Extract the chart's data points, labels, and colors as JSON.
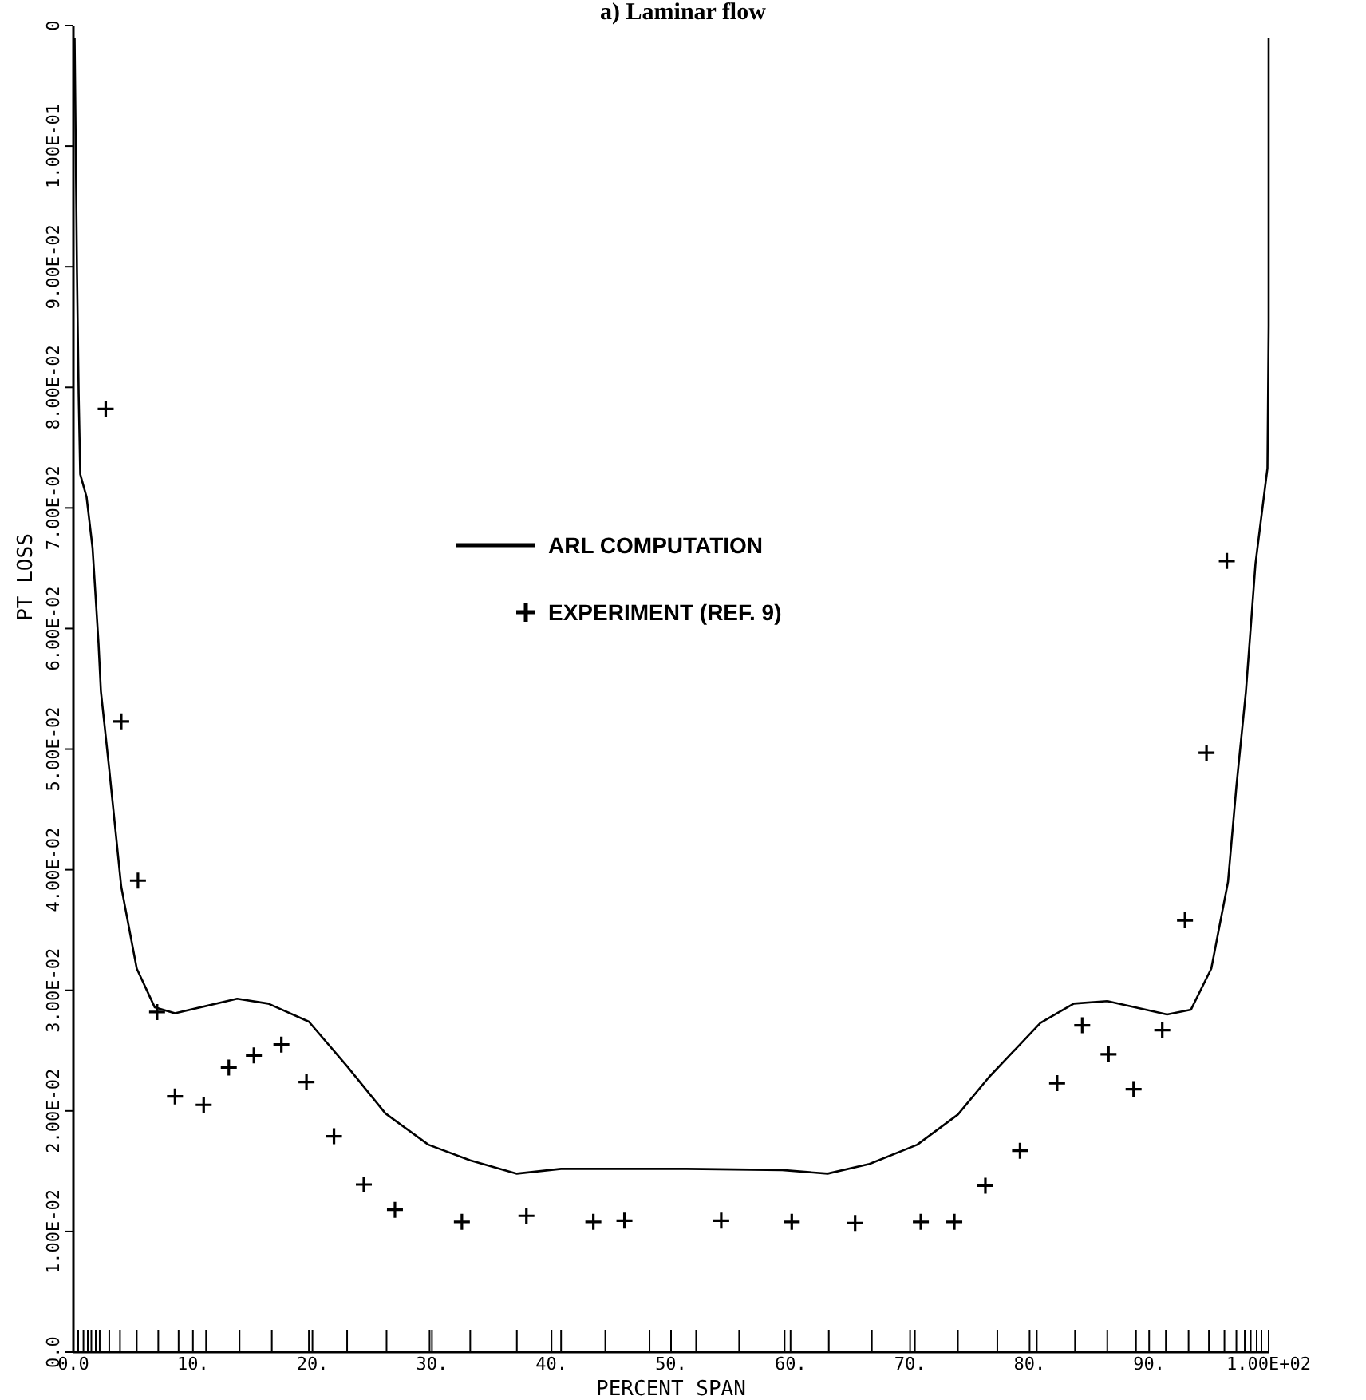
{
  "chart_data": {
    "type": "line",
    "title": "a)   Laminar flow",
    "xlabel": "PERCENT SPAN",
    "ylabel": "PT LOSS",
    "xlim": [
      0,
      100
    ],
    "ylim": [
      0,
      0.11
    ],
    "xticks": [
      {
        "value": 0,
        "label": "0.0"
      },
      {
        "value": 0.4,
        "label": null
      },
      {
        "value": 0.84,
        "label": null
      },
      {
        "value": 1.2,
        "label": null
      },
      {
        "value": 1.5,
        "label": null
      },
      {
        "value": 1.87,
        "label": null
      },
      {
        "value": 2.2,
        "label": null
      },
      {
        "value": 3.0,
        "label": null
      },
      {
        "value": 3.9,
        "label": null
      },
      {
        "value": 5.3,
        "label": null
      },
      {
        "value": 7.1,
        "label": null
      },
      {
        "value": 8.8,
        "label": null
      },
      {
        "value": 10,
        "label": "10."
      },
      {
        "value": 11.1,
        "label": null
      },
      {
        "value": 13.9,
        "label": null
      },
      {
        "value": 16.6,
        "label": null
      },
      {
        "value": 19.7,
        "label": null
      },
      {
        "value": 20,
        "label": "20."
      },
      {
        "value": 22.9,
        "label": null
      },
      {
        "value": 26.2,
        "label": null
      },
      {
        "value": 29.8,
        "label": null
      },
      {
        "value": 30,
        "label": "30."
      },
      {
        "value": 33.2,
        "label": null
      },
      {
        "value": 37.1,
        "label": null
      },
      {
        "value": 40,
        "label": "40."
      },
      {
        "value": 40.8,
        "label": null
      },
      {
        "value": 44.5,
        "label": null
      },
      {
        "value": 48.2,
        "label": null
      },
      {
        "value": 50,
        "label": "50."
      },
      {
        "value": 52.1,
        "label": null
      },
      {
        "value": 55.7,
        "label": null
      },
      {
        "value": 59.5,
        "label": null
      },
      {
        "value": 60,
        "label": "60."
      },
      {
        "value": 63.2,
        "label": null
      },
      {
        "value": 66.8,
        "label": null
      },
      {
        "value": 70,
        "label": "70."
      },
      {
        "value": 70.4,
        "label": null
      },
      {
        "value": 74.0,
        "label": null
      },
      {
        "value": 77.3,
        "label": null
      },
      {
        "value": 80,
        "label": "80."
      },
      {
        "value": 80.6,
        "label": null
      },
      {
        "value": 83.8,
        "label": null
      },
      {
        "value": 86.5,
        "label": null
      },
      {
        "value": 88.9,
        "label": null
      },
      {
        "value": 90,
        "label": "90."
      },
      {
        "value": 91.4,
        "label": null
      },
      {
        "value": 93.3,
        "label": null
      },
      {
        "value": 95.0,
        "label": null
      },
      {
        "value": 96.3,
        "label": null
      },
      {
        "value": 97.3,
        "label": null
      },
      {
        "value": 98.0,
        "label": null
      },
      {
        "value": 98.5,
        "label": null
      },
      {
        "value": 99.0,
        "label": null
      },
      {
        "value": 99.4,
        "label": null
      },
      {
        "value": 100,
        "label": "1.00E+02"
      }
    ],
    "yticks": [
      {
        "value": 0,
        "label": "0.0"
      },
      {
        "value": 0.01,
        "label": "1.00E-02"
      },
      {
        "value": 0.02,
        "label": "2.00E-02"
      },
      {
        "value": 0.03,
        "label": "3.00E-02"
      },
      {
        "value": 0.04,
        "label": "4.00E-02"
      },
      {
        "value": 0.05,
        "label": "5.00E-02"
      },
      {
        "value": 0.06,
        "label": "6.00E-02"
      },
      {
        "value": 0.07,
        "label": "7.00E-02"
      },
      {
        "value": 0.08,
        "label": "8.00E-02"
      },
      {
        "value": 0.09,
        "label": "9.00E-02"
      },
      {
        "value": 0.1,
        "label": "1.00E-01"
      },
      {
        "value": 0.11,
        "label": "0"
      }
    ],
    "grid": false,
    "legend": "center",
    "series": [
      {
        "name": "ARL COMPUTATION",
        "color": "#000000",
        "marker": "none",
        "line_style": "solid",
        "x": [
          0.1,
          0.2,
          0.3,
          0.44,
          0.57,
          1.1,
          1.6,
          2.1,
          2.3,
          3.0,
          4.0,
          5.3,
          6.8,
          8.5,
          13.7,
          16.3,
          19.7,
          22.9,
          26.1,
          29.7,
          33.2,
          37.1,
          40.8,
          51.3,
          59.3,
          63.1,
          66.6,
          70.6,
          74.0,
          76.6,
          80.9,
          83.7,
          86.5,
          91.5,
          93.5,
          95.2,
          96.6,
          97.3,
          98.1,
          98.9,
          99.9,
          100,
          100,
          100
        ],
        "values": [
          0.109,
          0.0995,
          0.0895,
          0.0794,
          0.0728,
          0.0709,
          0.0667,
          0.0588,
          0.0548,
          0.0483,
          0.0386,
          0.0318,
          0.0286,
          0.0281,
          0.0293,
          0.0289,
          0.0274,
          0.0237,
          0.0198,
          0.0172,
          0.0159,
          0.0148,
          0.0152,
          0.0152,
          0.0151,
          0.0148,
          0.0156,
          0.0172,
          0.0197,
          0.0228,
          0.0273,
          0.0289,
          0.0291,
          0.028,
          0.0284,
          0.0318,
          0.039,
          0.0469,
          0.0548,
          0.0654,
          0.0733,
          0.0851,
          0.0996,
          0.109
        ]
      },
      {
        "name": "EXPERIMENT (REF. 9)",
        "type": "scatter",
        "color": "#000000",
        "marker": "cross",
        "x": [
          2.7,
          4.0,
          5.4,
          7.0,
          8.5,
          10.9,
          13.0,
          15.1,
          17.4,
          19.5,
          21.8,
          24.3,
          26.9,
          32.5,
          37.9,
          43.5,
          46.1,
          54.2,
          60.1,
          65.4,
          70.9,
          73.7,
          76.3,
          79.2,
          82.3,
          84.4,
          86.6,
          88.7,
          91.1,
          93.0,
          94.8,
          96.5
        ],
        "values": [
          0.0782,
          0.0523,
          0.0391,
          0.0282,
          0.0212,
          0.0205,
          0.0236,
          0.0246,
          0.0255,
          0.0224,
          0.0179,
          0.0139,
          0.0118,
          0.0108,
          0.0113,
          0.0108,
          0.0109,
          0.0109,
          0.0108,
          0.0107,
          0.0108,
          0.0108,
          0.0138,
          0.0167,
          0.0223,
          0.0271,
          0.0247,
          0.0218,
          0.0267,
          0.0358,
          0.0497,
          0.0656
        ]
      }
    ]
  }
}
